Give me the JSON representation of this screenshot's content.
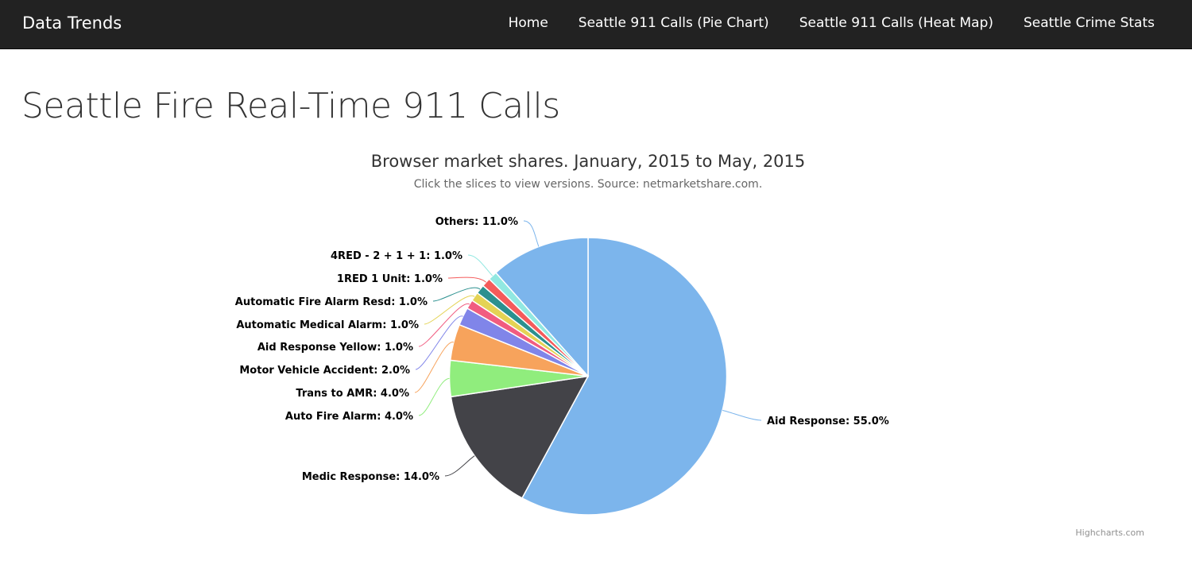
{
  "navbar": {
    "brand": "Data Trends",
    "links": [
      "Home",
      "Seattle 911 Calls (Pie Chart)",
      "Seattle 911 Calls (Heat Map)",
      "Seattle Crime Stats"
    ]
  },
  "page_title": "Seattle Fire Real-Time 911 Calls",
  "chart_data": {
    "type": "pie",
    "title": "Browser market shares. January, 2015 to May, 2015",
    "subtitle": "Click the slices to view versions. Source: netmarketshare.com.",
    "credits": "Highcharts.com",
    "slices": [
      {
        "name": "Aid Response",
        "value": 55.0,
        "color": "#7cb5ec",
        "label": "Aid Response: 55.0%"
      },
      {
        "name": "Medic Response",
        "value": 14.0,
        "color": "#434348",
        "label": "Medic Response: 14.0%"
      },
      {
        "name": "Auto Fire Alarm",
        "value": 4.0,
        "color": "#90ed7d",
        "label": "Auto Fire Alarm: 4.0%"
      },
      {
        "name": "Trans to AMR",
        "value": 4.0,
        "color": "#f7a35c",
        "label": "Trans to AMR: 4.0%"
      },
      {
        "name": "Motor Vehicle Accident",
        "value": 2.0,
        "color": "#8085e9",
        "label": "Motor Vehicle Accident: 2.0%"
      },
      {
        "name": "Aid Response Yellow",
        "value": 1.0,
        "color": "#f15c80",
        "label": "Aid Response Yellow: 1.0%"
      },
      {
        "name": "Automatic Medical Alarm",
        "value": 1.0,
        "color": "#e4d354",
        "label": "Automatic Medical Alarm: 1.0%"
      },
      {
        "name": "Automatic Fire Alarm Resd",
        "value": 1.0,
        "color": "#2b908f",
        "label": "Automatic Fire Alarm Resd: 1.0%"
      },
      {
        "name": "1RED 1 Unit",
        "value": 1.0,
        "color": "#f45b5b",
        "label": "1RED 1 Unit: 1.0%"
      },
      {
        "name": "4RED - 2 + 1 + 1",
        "value": 1.0,
        "color": "#91e8e1",
        "label": "4RED - 2 + 1 + 1: 1.0%"
      },
      {
        "name": "Others",
        "value": 11.0,
        "color": "#7cb5ec",
        "label": "Others: 11.0%"
      }
    ]
  }
}
